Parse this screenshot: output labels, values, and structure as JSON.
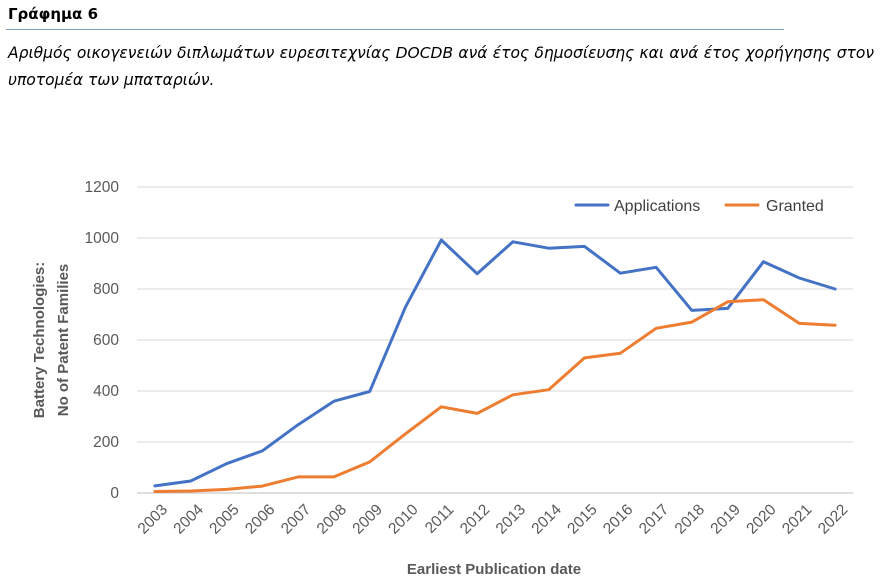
{
  "figure": {
    "label": "Γράφημα 6",
    "caption": "Αριθμός οικογενειών διπλωμάτων ευρεσιτεχνίας DOCDB ανά έτος δημοσίευσης και ανά έτος χορήγησης στον υποτομέα των μπαταριών."
  },
  "chart_data": {
    "type": "line",
    "title": "",
    "xlabel": "Earliest Publication date",
    "ylabel_lines": [
      "Battery Technologies:",
      "No of Patent Families"
    ],
    "ylim": [
      0,
      1200
    ],
    "yticks": [
      0,
      200,
      400,
      600,
      800,
      1000,
      1200
    ],
    "grid": true,
    "legend_position": "top-right",
    "categories": [
      "2003",
      "2004",
      "2005",
      "2006",
      "2007",
      "2008",
      "2009",
      "2010",
      "2011",
      "2012",
      "2013",
      "2014",
      "2015",
      "2016",
      "2017",
      "2018",
      "2019",
      "2020",
      "2021",
      "2022"
    ],
    "series": [
      {
        "name": "Applications",
        "color": "#4472C4",
        "values": [
          28,
          47,
          115,
          165,
          268,
          360,
          398,
          730,
          992,
          860,
          985,
          960,
          967,
          862,
          885,
          716,
          724,
          907,
          843,
          800
        ]
      },
      {
        "name": "Granted",
        "color": "#ED7D31",
        "values": [
          6,
          8,
          14,
          27,
          63,
          63,
          122,
          232,
          338,
          312,
          385,
          405,
          530,
          548,
          646,
          670,
          750,
          758,
          665,
          658
        ]
      }
    ]
  }
}
